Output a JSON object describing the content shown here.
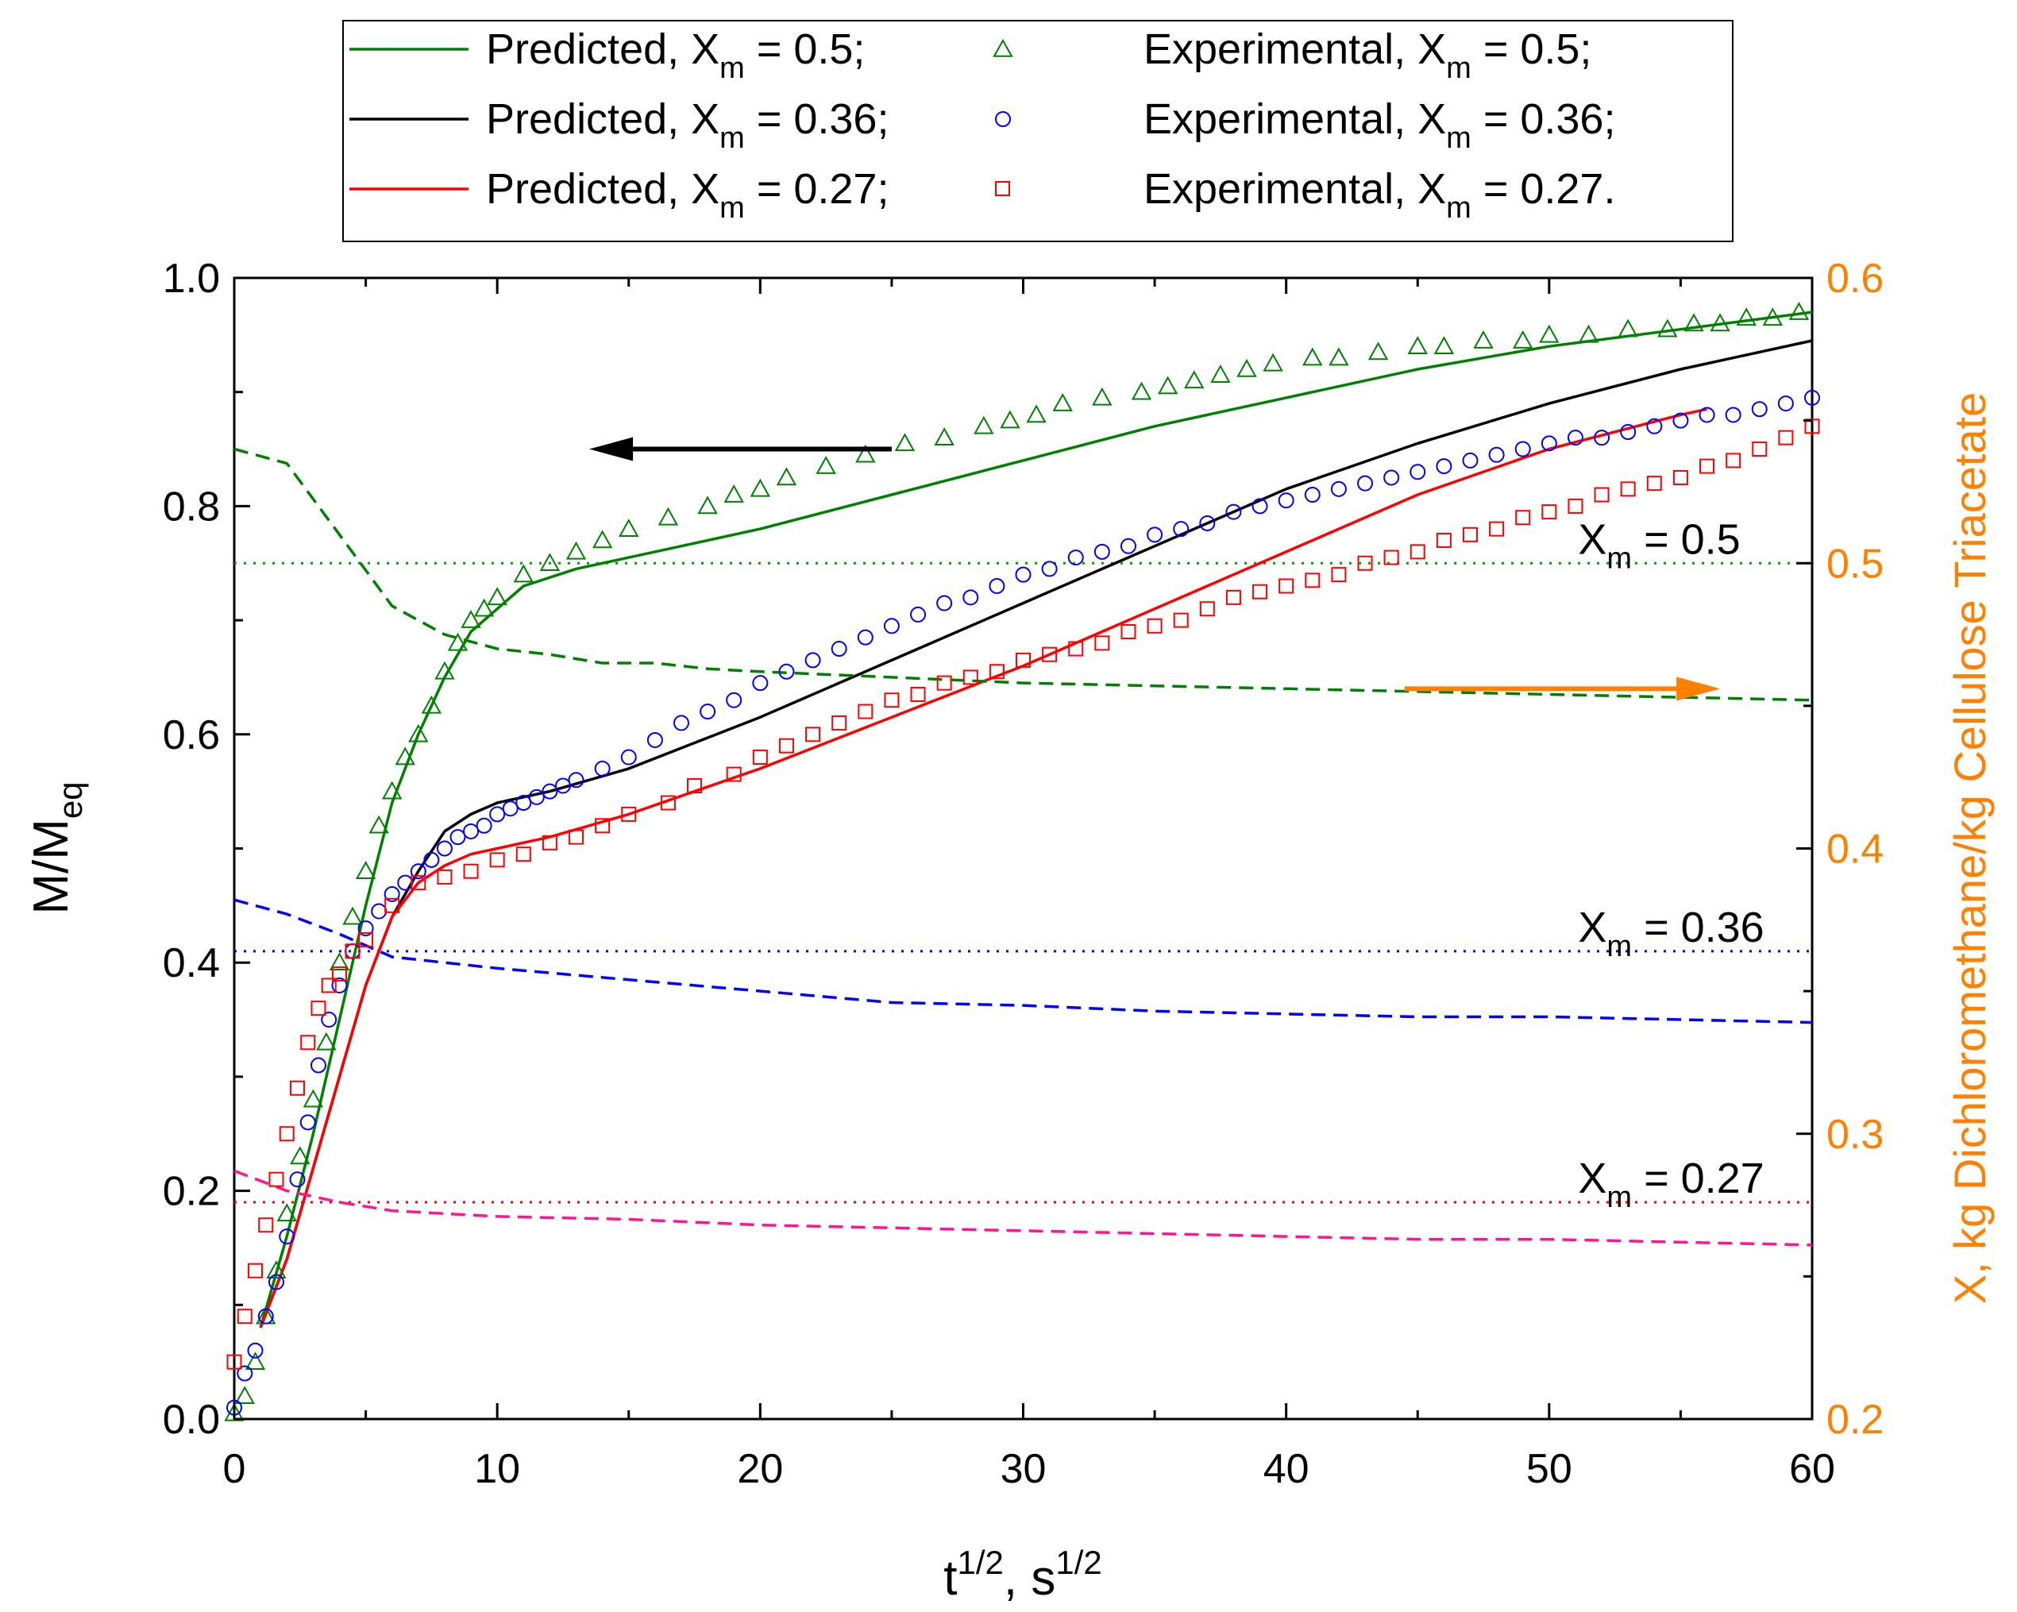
{
  "chart_data": {
    "type": "line",
    "title": "",
    "xlabel": "t",
    "xlabel_sup": "1/2",
    "xlabel_mid": ", s",
    "xlabel_sup2": "1/2",
    "ylabel": "M/M",
    "ylabel_sub": "eq",
    "ylabel_right": "X, kg Dichloromethane/kg Cellulose Triacetate",
    "xlim": [
      0,
      60
    ],
    "ylim": [
      0.0,
      1.0
    ],
    "ylim_right": [
      0.2,
      0.6
    ],
    "x_ticks": [
      "0",
      "10",
      "20",
      "30",
      "40",
      "50",
      "60"
    ],
    "y_ticks": [
      "0.0",
      "0.2",
      "0.4",
      "0.6",
      "0.8",
      "1.0"
    ],
    "y_right_ticks": [
      "0.2",
      "0.3",
      "0.4",
      "0.5",
      "0.6"
    ],
    "colors": {
      "green": "#008000",
      "black": "#000000",
      "red": "#ff0000",
      "blue": "#0000ff",
      "pink": "#ff1493",
      "orange": "#ff8000",
      "dkgreen": "#00a000"
    },
    "legend": {
      "position": "top",
      "entries": [
        {
          "id": "pred05",
          "prefix": "Predicted, X",
          "sub": "m",
          "suffix": " = 0.5;",
          "kind": "line",
          "color": "#008000"
        },
        {
          "id": "exp05",
          "prefix": "Experimental, X",
          "sub": "m",
          "suffix": " = 0.5;",
          "kind": "triangle",
          "color": "#008000"
        },
        {
          "id": "pred036",
          "prefix": "Predicted, X",
          "sub": "m",
          "suffix": " = 0.36;",
          "kind": "line",
          "color": "#000000"
        },
        {
          "id": "exp036",
          "prefix": "Experimental, X",
          "sub": "m",
          "suffix": " = 0.36;",
          "kind": "circle",
          "color": "#0000ff"
        },
        {
          "id": "pred027",
          "prefix": "Predicted, X",
          "sub": "m",
          "suffix": " = 0.27;",
          "kind": "line",
          "color": "#ff0000"
        },
        {
          "id": "exp027",
          "prefix": "Experimental, X",
          "sub": "m",
          "suffix": " = 0.27.",
          "kind": "square",
          "color": "#ff0000"
        }
      ]
    },
    "annotations": [
      {
        "id": "xm05",
        "prefix": "X",
        "sub": "m",
        "suffix": " = 0.5",
        "x": 50.5,
        "y": 0.75
      },
      {
        "id": "xm036",
        "prefix": "X",
        "sub": "m",
        "suffix": " = 0.36",
        "x": 50.5,
        "y": 0.41
      },
      {
        "id": "xm027",
        "prefix": "X",
        "sub": "m",
        "suffix": " = 0.27",
        "x": 50.5,
        "y": 0.19
      }
    ],
    "arrows": [
      {
        "id": "arrow-left",
        "color": "#000000",
        "from": [
          25,
          0.85
        ],
        "to": [
          13.5,
          0.85
        ],
        "axis": "left"
      },
      {
        "id": "arrow-right",
        "color": "#ff8000",
        "from": [
          44.5,
          0.64
        ],
        "to": [
          56.5,
          0.64
        ],
        "axis": "left"
      }
    ],
    "hlines": [
      {
        "name": "Xm = 0.5 level",
        "y": 0.75,
        "color": "#00a000",
        "style": "dotted"
      },
      {
        "name": "Xm = 0.36 level",
        "y": 0.41,
        "color": "#0000ff",
        "style": "dotted"
      },
      {
        "name": "Xm = 0.27 level",
        "y": 0.19,
        "color": "#ff0000",
        "style": "dotted"
      }
    ],
    "series": [
      {
        "name": "Predicted, Xm = 0.5",
        "kind": "line",
        "color": "#008000",
        "x": [
          1,
          2,
          3,
          4,
          5,
          6,
          7,
          8,
          9,
          10,
          11,
          13,
          15,
          20,
          25,
          30,
          35,
          40,
          45,
          50,
          55,
          60
        ],
        "y": [
          0.08,
          0.16,
          0.25,
          0.35,
          0.45,
          0.54,
          0.6,
          0.65,
          0.69,
          0.71,
          0.73,
          0.745,
          0.755,
          0.78,
          0.81,
          0.84,
          0.87,
          0.895,
          0.92,
          0.94,
          0.955,
          0.97
        ]
      },
      {
        "name": "Predicted, Xm = 0.36",
        "kind": "line",
        "color": "#000000",
        "x": [
          1,
          2,
          3,
          4,
          5,
          6,
          7,
          8,
          9,
          10,
          12,
          15,
          20,
          25,
          30,
          35,
          40,
          45,
          50,
          55,
          60
        ],
        "y": [
          0.08,
          0.14,
          0.22,
          0.3,
          0.38,
          0.44,
          0.48,
          0.515,
          0.53,
          0.54,
          0.55,
          0.57,
          0.615,
          0.665,
          0.715,
          0.765,
          0.815,
          0.855,
          0.89,
          0.92,
          0.945
        ]
      },
      {
        "name": "Predicted, Xm = 0.27",
        "kind": "line",
        "color": "#ff0000",
        "x": [
          1,
          2,
          3,
          4,
          5,
          6,
          7,
          8,
          9,
          10,
          12,
          15,
          20,
          25,
          30,
          35,
          40,
          45,
          50,
          55,
          56
        ],
        "y": [
          0.08,
          0.14,
          0.22,
          0.3,
          0.38,
          0.44,
          0.47,
          0.485,
          0.495,
          0.5,
          0.51,
          0.53,
          0.57,
          0.615,
          0.66,
          0.71,
          0.76,
          0.81,
          0.85,
          0.88,
          0.885
        ]
      },
      {
        "name": "Experimental, Xm = 0.5",
        "kind": "triangle",
        "color": "#008000",
        "x": [
          0,
          0.4,
          0.8,
          1.2,
          1.6,
          2,
          2.5,
          3,
          3.5,
          4,
          4.5,
          5,
          5.5,
          6,
          6.5,
          7,
          7.5,
          8,
          8.5,
          9,
          9.5,
          10,
          11,
          12,
          13,
          14,
          15,
          16.5,
          18,
          19,
          20,
          21,
          22.5,
          24,
          25.5,
          27,
          28.5,
          29.5,
          30.5,
          31.5,
          33,
          34.5,
          35.5,
          36.5,
          37.5,
          38.5,
          39.5,
          41,
          42,
          43.5,
          45,
          46,
          47.5,
          49,
          50,
          51.5,
          53,
          54.5,
          55.5,
          56.5,
          57.5,
          58.5,
          59.5
        ],
        "y": [
          0.005,
          0.02,
          0.05,
          0.09,
          0.13,
          0.18,
          0.23,
          0.28,
          0.33,
          0.4,
          0.44,
          0.48,
          0.52,
          0.55,
          0.58,
          0.6,
          0.625,
          0.655,
          0.68,
          0.7,
          0.71,
          0.72,
          0.74,
          0.75,
          0.76,
          0.77,
          0.78,
          0.79,
          0.8,
          0.81,
          0.815,
          0.825,
          0.835,
          0.845,
          0.855,
          0.86,
          0.87,
          0.875,
          0.88,
          0.89,
          0.895,
          0.9,
          0.905,
          0.91,
          0.915,
          0.92,
          0.925,
          0.93,
          0.93,
          0.935,
          0.94,
          0.94,
          0.945,
          0.945,
          0.95,
          0.95,
          0.955,
          0.955,
          0.96,
          0.96,
          0.965,
          0.965,
          0.97
        ]
      },
      {
        "name": "Experimental, Xm = 0.36",
        "kind": "circle",
        "color": "#0000ff",
        "x": [
          0,
          0.4,
          0.8,
          1.2,
          1.6,
          2,
          2.4,
          2.8,
          3.2,
          3.6,
          4,
          4.5,
          5,
          5.5,
          6,
          6.5,
          7,
          7.5,
          8,
          8.5,
          9,
          9.5,
          10,
          10.5,
          11,
          11.5,
          12,
          12.5,
          13,
          14,
          15,
          16,
          17,
          18,
          19,
          20,
          21,
          22,
          23,
          24,
          25,
          26,
          27,
          28,
          29,
          30,
          31,
          32,
          33,
          34,
          35,
          36,
          37,
          38,
          39,
          40,
          41,
          42,
          43,
          44,
          45,
          46,
          47,
          48,
          49,
          50,
          51,
          52,
          53,
          54,
          55,
          56,
          57,
          58,
          59,
          60
        ],
        "y": [
          0.01,
          0.04,
          0.06,
          0.09,
          0.12,
          0.16,
          0.21,
          0.26,
          0.31,
          0.35,
          0.38,
          0.41,
          0.43,
          0.445,
          0.46,
          0.47,
          0.48,
          0.49,
          0.5,
          0.51,
          0.515,
          0.52,
          0.53,
          0.535,
          0.54,
          0.545,
          0.55,
          0.555,
          0.56,
          0.57,
          0.58,
          0.595,
          0.61,
          0.62,
          0.63,
          0.645,
          0.655,
          0.665,
          0.675,
          0.685,
          0.695,
          0.705,
          0.715,
          0.72,
          0.73,
          0.74,
          0.745,
          0.755,
          0.76,
          0.765,
          0.775,
          0.78,
          0.785,
          0.795,
          0.8,
          0.805,
          0.81,
          0.815,
          0.82,
          0.825,
          0.83,
          0.835,
          0.84,
          0.845,
          0.85,
          0.855,
          0.86,
          0.86,
          0.865,
          0.87,
          0.875,
          0.88,
          0.88,
          0.885,
          0.89,
          0.895
        ]
      },
      {
        "name": "Experimental, Xm = 0.27",
        "kind": "square",
        "color": "#ff0000",
        "x": [
          0,
          0.4,
          0.8,
          1.2,
          1.6,
          2,
          2.4,
          2.8,
          3.2,
          3.6,
          4,
          4.5,
          5,
          6,
          7,
          8,
          9,
          10,
          11,
          12,
          13,
          14,
          15,
          16.5,
          17.5,
          19,
          20,
          21,
          22,
          23,
          24,
          25,
          26,
          27,
          28,
          29,
          30,
          31,
          32,
          33,
          34,
          35,
          36,
          37,
          38,
          39,
          40,
          41,
          42,
          43,
          44,
          45,
          46,
          47,
          48,
          49,
          50,
          51,
          52,
          53,
          54,
          55,
          56,
          57,
          58,
          59,
          60
        ],
        "y": [
          0.05,
          0.09,
          0.13,
          0.17,
          0.21,
          0.25,
          0.29,
          0.33,
          0.36,
          0.38,
          0.39,
          0.41,
          0.42,
          0.45,
          0.47,
          0.475,
          0.48,
          0.49,
          0.495,
          0.505,
          0.51,
          0.52,
          0.53,
          0.54,
          0.555,
          0.565,
          0.58,
          0.59,
          0.6,
          0.61,
          0.62,
          0.63,
          0.635,
          0.645,
          0.65,
          0.655,
          0.665,
          0.67,
          0.675,
          0.68,
          0.69,
          0.695,
          0.7,
          0.71,
          0.72,
          0.725,
          0.73,
          0.735,
          0.74,
          0.75,
          0.755,
          0.76,
          0.77,
          0.775,
          0.78,
          0.79,
          0.795,
          0.8,
          0.81,
          0.815,
          0.82,
          0.825,
          0.835,
          0.84,
          0.85,
          0.86,
          0.87
        ]
      },
      {
        "name": "X, Xm = 0.5",
        "kind": "dashed",
        "axis": "right",
        "color": "#008000",
        "x": [
          0,
          2,
          4,
          6,
          8,
          10,
          12,
          14,
          16,
          18,
          20,
          25,
          30,
          35,
          40,
          45,
          50,
          55,
          60
        ],
        "y": [
          0.54,
          0.535,
          0.51,
          0.485,
          0.475,
          0.47,
          0.468,
          0.465,
          0.465,
          0.463,
          0.462,
          0.46,
          0.458,
          0.457,
          0.456,
          0.455,
          0.454,
          0.453,
          0.452
        ]
      },
      {
        "name": "X, Xm = 0.36",
        "kind": "dashed",
        "axis": "right",
        "color": "#0000ff",
        "x": [
          0,
          2,
          4,
          6,
          8,
          10,
          15,
          20,
          25,
          30,
          35,
          40,
          45,
          50,
          55,
          60
        ],
        "y": [
          0.382,
          0.377,
          0.37,
          0.362,
          0.36,
          0.358,
          0.354,
          0.35,
          0.346,
          0.345,
          0.343,
          0.342,
          0.341,
          0.341,
          0.34,
          0.339
        ]
      },
      {
        "name": "X, Xm = 0.27",
        "kind": "dashed",
        "axis": "right",
        "color": "#ff1493",
        "x": [
          0,
          2,
          4,
          6,
          8,
          10,
          15,
          20,
          25,
          30,
          35,
          40,
          45,
          50,
          55,
          60
        ],
        "y": [
          0.287,
          0.28,
          0.276,
          0.273,
          0.272,
          0.271,
          0.27,
          0.268,
          0.267,
          0.266,
          0.265,
          0.264,
          0.263,
          0.263,
          0.262,
          0.261
        ]
      }
    ]
  }
}
